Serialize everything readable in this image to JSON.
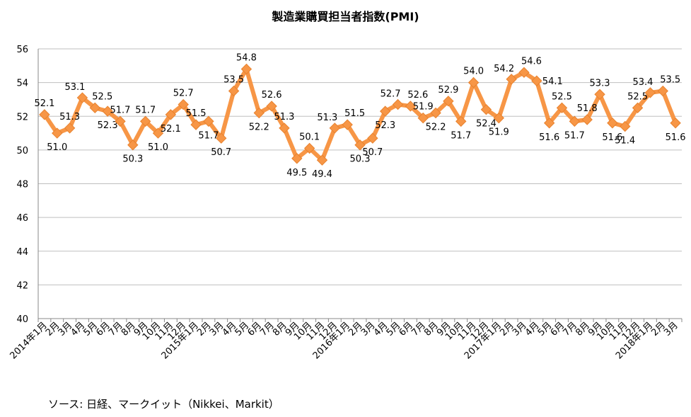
{
  "chart_data": {
    "type": "line",
    "title": "製造業購買担当者指数(PMI)",
    "xlabel": "",
    "ylabel": "",
    "ylim": [
      40,
      56
    ],
    "yticks": [
      40,
      42,
      44,
      46,
      48,
      50,
      52,
      54,
      56
    ],
    "grid": true,
    "legend": "none",
    "categories": [
      "2014年1月",
      "2月",
      "3月",
      "4月",
      "5月",
      "6月",
      "7月",
      "8月",
      "9月",
      "10月",
      "11月",
      "12月",
      "2015年1月",
      "2月",
      "3月",
      "4月",
      "5月",
      "6月",
      "7月",
      "8月",
      "9月",
      "10月",
      "11月",
      "12月",
      "2016年1月",
      "2月",
      "3月",
      "4月",
      "5月",
      "6月",
      "7月",
      "8月",
      "9月",
      "10月",
      "11月",
      "12月",
      "2017年1月",
      "2月",
      "3月",
      "4月",
      "5月",
      "6月",
      "7月",
      "8月",
      "9月",
      "10月",
      "11月",
      "12月",
      "2018年1月",
      "2月",
      "3月"
    ],
    "series": [
      {
        "color": "#F79646",
        "marker": "diamond",
        "values": [
          52.1,
          51.0,
          51.3,
          53.1,
          52.5,
          52.3,
          51.7,
          50.3,
          51.7,
          51.0,
          52.1,
          52.7,
          51.5,
          51.7,
          50.7,
          53.5,
          54.8,
          52.2,
          52.6,
          51.3,
          49.5,
          50.1,
          49.4,
          51.3,
          51.5,
          50.3,
          50.7,
          52.3,
          52.7,
          52.6,
          51.9,
          52.2,
          52.9,
          51.7,
          54.0,
          52.4,
          51.9,
          54.2,
          54.6,
          54.1,
          51.6,
          52.5,
          51.7,
          51.8,
          53.3,
          51.6,
          51.4,
          52.5,
          53.4,
          53.5,
          51.6
        ]
      }
    ]
  },
  "source": "ソース: 日経、マークイット（Nikkei、Markit）"
}
